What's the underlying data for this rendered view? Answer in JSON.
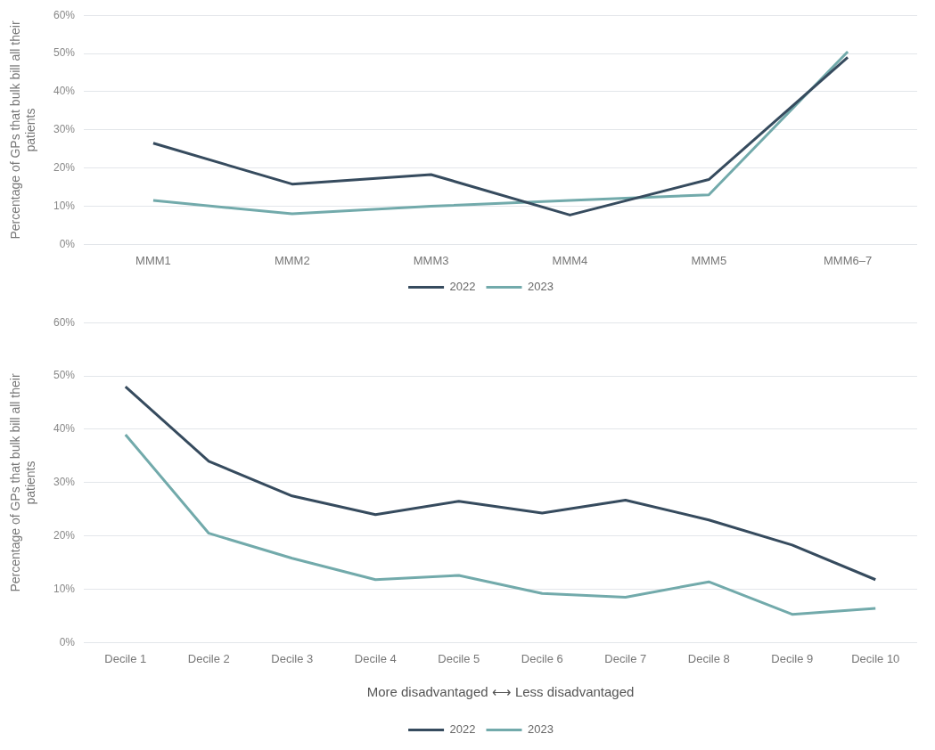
{
  "chart_data": [
    {
      "type": "line",
      "ylabel": "Percentage of GPs that bulk bill all their patients",
      "categories": [
        "MMM1",
        "MMM2",
        "MMM3",
        "MMM4",
        "MMM5",
        "MMM6–7"
      ],
      "series": [
        {
          "name": "2022",
          "color": "#364b5e",
          "values": [
            26.5,
            15.8,
            18.3,
            7.7,
            17,
            49
          ]
        },
        {
          "name": "2023",
          "color": "#72aaab",
          "values": [
            11.5,
            8,
            10,
            11.5,
            13,
            50.5
          ]
        }
      ],
      "ylim": [
        0,
        60
      ],
      "yticks": [
        {
          "value": 0,
          "label": "0%"
        },
        {
          "value": 10,
          "label": "10%"
        },
        {
          "value": 20,
          "label": "20%"
        },
        {
          "value": 30,
          "label": "30%"
        },
        {
          "value": 40,
          "label": "40%"
        },
        {
          "value": 50,
          "label": "50%"
        },
        {
          "value": 60,
          "label": "60%"
        }
      ],
      "grid": "y",
      "legend": "bottom",
      "marker": "none",
      "line_style": "solid"
    },
    {
      "type": "line",
      "ylabel": "Percentage of GPs that bulk bill all their patients",
      "xlabel": "More disadvantaged ⟷ Less disadvantaged",
      "categories": [
        "Decile 1",
        "Decile 2",
        "Decile 3",
        "Decile 4",
        "Decile 5",
        "Decile 6",
        "Decile 7",
        "Decile 8",
        "Decile 9",
        "Decile 10"
      ],
      "series": [
        {
          "name": "2022",
          "color": "#364b5e",
          "values": [
            48,
            34,
            27.5,
            24,
            26.5,
            24.3,
            26.7,
            23,
            18.3,
            11.8
          ]
        },
        {
          "name": "2023",
          "color": "#72aaab",
          "values": [
            39,
            20.5,
            15.8,
            11.8,
            12.6,
            9.2,
            8.5,
            11.4,
            5.3,
            6.4
          ]
        }
      ],
      "ylim": [
        0,
        60
      ],
      "yticks": [
        {
          "value": 0,
          "label": "0%"
        },
        {
          "value": 10,
          "label": "10%"
        },
        {
          "value": 20,
          "label": "20%"
        },
        {
          "value": 30,
          "label": "30%"
        },
        {
          "value": 40,
          "label": "40%"
        },
        {
          "value": 50,
          "label": "50%"
        },
        {
          "value": 60,
          "label": "60%"
        }
      ],
      "grid": "y",
      "legend": "bottom",
      "marker": "none",
      "line_style": "solid"
    }
  ]
}
